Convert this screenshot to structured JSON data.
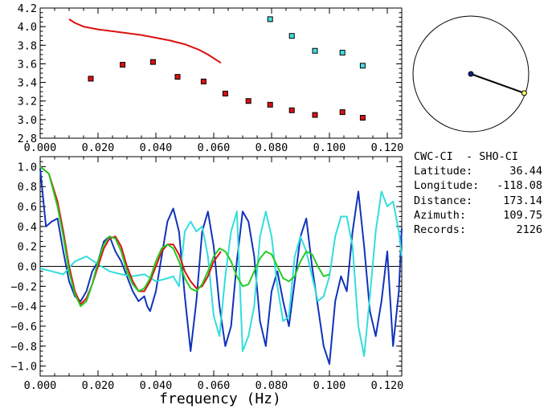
{
  "chart_data": [
    {
      "type": "scatter",
      "xlim": [
        0.0,
        0.125
      ],
      "ylim": [
        2.8,
        4.2
      ],
      "x_ticks": [
        "0.000",
        "0.020",
        "0.040",
        "0.060",
        "0.080",
        "0.100",
        "0.120"
      ],
      "y_ticks": [
        "2.8",
        "3.0",
        "3.2",
        "3.4",
        "3.6",
        "3.8",
        "4.0",
        "4.2"
      ],
      "grid": false,
      "series": [
        {
          "mark": "line",
          "color": "#dd1111",
          "x": [
            0.01,
            0.012,
            0.015,
            0.02,
            0.025,
            0.03,
            0.035,
            0.04,
            0.045,
            0.05,
            0.055,
            0.058,
            0.06,
            0.0625
          ],
          "y": [
            4.08,
            4.04,
            4.0,
            3.97,
            3.95,
            3.93,
            3.91,
            3.88,
            3.85,
            3.81,
            3.75,
            3.7,
            3.66,
            3.61
          ]
        },
        {
          "mark": "square",
          "color": "#dd1111",
          "x": [
            0.0175,
            0.0285,
            0.039,
            0.0475,
            0.0565,
            0.064,
            0.072,
            0.0795,
            0.087,
            0.095,
            0.1045,
            0.1115
          ],
          "y": [
            3.44,
            3.59,
            3.62,
            3.46,
            3.41,
            3.28,
            3.2,
            3.16,
            3.1,
            3.05,
            3.08,
            3.02
          ]
        },
        {
          "mark": "square",
          "color": "#44dddd",
          "x": [
            0.0795,
            0.087,
            0.095,
            0.1045,
            0.1115
          ],
          "y": [
            4.08,
            3.9,
            3.74,
            3.72,
            3.58
          ]
        }
      ]
    },
    {
      "type": "line",
      "xlim": [
        0.0,
        0.125
      ],
      "ylim": [
        -1.1,
        1.1
      ],
      "x_ticks": [
        "0.000",
        "0.020",
        "0.040",
        "0.060",
        "0.080",
        "0.100",
        "0.120"
      ],
      "y_ticks": [
        "-1.0",
        "-0.8",
        "-0.6",
        "-0.4",
        "-0.2",
        "0.0",
        "0.2",
        "0.4",
        "0.6",
        "0.8",
        "1.0"
      ],
      "xlabel": "frequency (Hz)",
      "zero_line": true,
      "series": [
        {
          "color": "#1133bb",
          "x": [
            0.0,
            0.002,
            0.004,
            0.006,
            0.008,
            0.01,
            0.012,
            0.014,
            0.016,
            0.018,
            0.02,
            0.022,
            0.024,
            0.026,
            0.028,
            0.03,
            0.032,
            0.034,
            0.036,
            0.037,
            0.038,
            0.04,
            0.042,
            0.044,
            0.046,
            0.048,
            0.05,
            0.052,
            0.054,
            0.056,
            0.058,
            0.06,
            0.062,
            0.064,
            0.066,
            0.068,
            0.07,
            0.072,
            0.074,
            0.076,
            0.078,
            0.08,
            0.082,
            0.084,
            0.086,
            0.088,
            0.09,
            0.092,
            0.094,
            0.096,
            0.098,
            0.1,
            0.102,
            0.104,
            0.106,
            0.108,
            0.11,
            0.112,
            0.114,
            0.116,
            0.118,
            0.12,
            0.122,
            0.124,
            0.125
          ],
          "y": [
            0.98,
            0.4,
            0.45,
            0.48,
            0.15,
            -0.15,
            -0.3,
            -0.35,
            -0.25,
            -0.05,
            0.05,
            0.25,
            0.3,
            0.15,
            0.05,
            -0.1,
            -0.25,
            -0.35,
            -0.3,
            -0.4,
            -0.45,
            -0.25,
            0.1,
            0.45,
            0.58,
            0.35,
            -0.3,
            -0.85,
            -0.35,
            0.35,
            0.55,
            0.2,
            -0.4,
            -0.8,
            -0.6,
            0.05,
            0.55,
            0.45,
            0.1,
            -0.55,
            -0.8,
            -0.25,
            -0.05,
            -0.35,
            -0.6,
            -0.15,
            0.3,
            0.48,
            0.0,
            -0.4,
            -0.8,
            -0.98,
            -0.35,
            -0.1,
            -0.25,
            0.35,
            0.75,
            0.2,
            -0.45,
            -0.7,
            -0.35,
            0.15,
            -0.8,
            -0.25,
            0.38
          ]
        },
        {
          "color": "#33dddd",
          "x": [
            0.0,
            0.004,
            0.008,
            0.012,
            0.016,
            0.02,
            0.024,
            0.028,
            0.032,
            0.036,
            0.04,
            0.044,
            0.046,
            0.048,
            0.05,
            0.052,
            0.054,
            0.056,
            0.058,
            0.06,
            0.062,
            0.064,
            0.066,
            0.068,
            0.07,
            0.072,
            0.074,
            0.076,
            0.078,
            0.08,
            0.082,
            0.084,
            0.086,
            0.088,
            0.09,
            0.092,
            0.094,
            0.096,
            0.098,
            0.1,
            0.102,
            0.104,
            0.106,
            0.108,
            0.11,
            0.112,
            0.114,
            0.116,
            0.118,
            0.12,
            0.122,
            0.124,
            0.125
          ],
          "y": [
            -0.02,
            -0.05,
            -0.08,
            0.05,
            0.1,
            0.02,
            -0.05,
            -0.08,
            -0.1,
            -0.08,
            -0.15,
            -0.12,
            -0.1,
            -0.2,
            0.35,
            0.45,
            0.35,
            0.4,
            0.1,
            -0.5,
            -0.7,
            -0.1,
            0.35,
            0.55,
            -0.85,
            -0.7,
            -0.4,
            0.3,
            0.55,
            0.3,
            -0.2,
            -0.55,
            -0.5,
            0.1,
            0.3,
            0.15,
            -0.1,
            -0.35,
            -0.3,
            -0.1,
            0.3,
            0.5,
            0.5,
            0.2,
            -0.6,
            -0.9,
            -0.3,
            0.35,
            0.75,
            0.6,
            0.65,
            0.35,
            0.1
          ]
        },
        {
          "color": "#dd1111",
          "x": [
            0.0,
            0.003,
            0.006,
            0.008,
            0.01,
            0.012,
            0.014,
            0.016,
            0.018,
            0.02,
            0.022,
            0.024,
            0.026,
            0.028,
            0.03,
            0.032,
            0.034,
            0.036,
            0.038,
            0.04,
            0.042,
            0.044,
            0.046,
            0.048,
            0.05,
            0.052,
            0.054,
            0.056,
            0.058,
            0.06,
            0.0625
          ],
          "y": [
            1.0,
            0.93,
            0.65,
            0.35,
            0.0,
            -0.25,
            -0.38,
            -0.32,
            -0.18,
            0.0,
            0.18,
            0.28,
            0.3,
            0.2,
            0.0,
            -0.15,
            -0.25,
            -0.25,
            -0.15,
            0.0,
            0.15,
            0.22,
            0.22,
            0.12,
            -0.05,
            -0.15,
            -0.22,
            -0.2,
            -0.1,
            0.05,
            0.15
          ]
        },
        {
          "color": "#22cc22",
          "x": [
            0.0,
            0.003,
            0.006,
            0.008,
            0.01,
            0.012,
            0.014,
            0.016,
            0.018,
            0.02,
            0.022,
            0.024,
            0.026,
            0.028,
            0.03,
            0.032,
            0.034,
            0.036,
            0.038,
            0.04,
            0.042,
            0.044,
            0.046,
            0.048,
            0.05,
            0.052,
            0.054,
            0.056,
            0.058,
            0.06,
            0.062,
            0.064,
            0.066,
            0.068,
            0.07,
            0.072,
            0.074,
            0.076,
            0.078,
            0.08,
            0.082,
            0.084,
            0.086,
            0.088,
            0.09,
            0.092,
            0.094,
            0.096,
            0.098,
            0.1
          ],
          "y": [
            1.0,
            0.93,
            0.6,
            0.3,
            -0.05,
            -0.28,
            -0.4,
            -0.35,
            -0.18,
            0.05,
            0.22,
            0.3,
            0.28,
            0.15,
            -0.05,
            -0.18,
            -0.25,
            -0.22,
            -0.12,
            0.05,
            0.18,
            0.22,
            0.18,
            0.05,
            -0.12,
            -0.22,
            -0.25,
            -0.18,
            -0.05,
            0.1,
            0.18,
            0.15,
            0.05,
            -0.1,
            -0.2,
            -0.18,
            -0.05,
            0.08,
            0.15,
            0.12,
            0.0,
            -0.12,
            -0.15,
            -0.1,
            0.05,
            0.15,
            0.12,
            0.0,
            -0.1,
            -0.08
          ]
        }
      ]
    }
  ],
  "map": {
    "center_color": "#112288",
    "station_color": "#ffff66",
    "azimuth_deg": 109.75,
    "distance_fraction": 0.98
  },
  "info": {
    "stations": "CWC-CI  - SHO-CI",
    "latitude_label": "Latitude:",
    "latitude_value": "36.44",
    "longitude_label": "Longitude:",
    "longitude_value": "-118.08",
    "distance_label": "Distance:",
    "distance_value": "173.14",
    "azimuth_label": "Azimuth:",
    "azimuth_value": "109.75",
    "records_label": "Records:",
    "records_value": "2126"
  }
}
